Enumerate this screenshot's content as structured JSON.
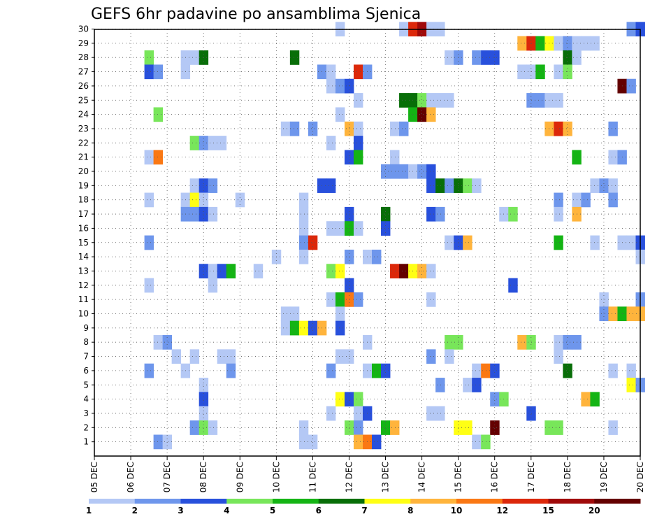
{
  "chart_data": {
    "type": "heatmap",
    "title": "GEFS 6hr padavine po ansamblima Sjenica",
    "xlabel": "",
    "ylabel": "",
    "grid": true,
    "legend_position": "bottom",
    "x_ticks": [
      "05 DEC",
      "06 DEC",
      "07 DEC",
      "08 DEC",
      "09 DEC",
      "10 DEC",
      "11 DEC",
      "12 DEC",
      "13 DEC",
      "14 DEC",
      "15 DEC",
      "16 DEC",
      "17 DEC",
      "18 DEC",
      "19 DEC",
      "20 DEC"
    ],
    "y_ticks": [
      "1",
      "2",
      "3",
      "4",
      "5",
      "6",
      "7",
      "8",
      "9",
      "10",
      "11",
      "12",
      "13",
      "14",
      "15",
      "16",
      "17",
      "18",
      "19",
      "20",
      "21",
      "22",
      "23",
      "24",
      "25",
      "26",
      "27",
      "28",
      "29",
      "30"
    ],
    "x_range_days": [
      0,
      15
    ],
    "y_range": [
      0,
      30
    ],
    "colorbar": {
      "labels": [
        "1",
        "2",
        "3",
        "4",
        "5",
        "6",
        "7",
        "8",
        "10",
        "12",
        "15",
        "20"
      ],
      "colors": [
        "#b4c8f5",
        "#6e96ec",
        "#2850dc",
        "#78e65a",
        "#14b414",
        "#086e08",
        "#ffff14",
        "#ffb43c",
        "#fa7814",
        "#dc280a",
        "#a00a0a",
        "#640000"
      ]
    },
    "cells": [
      {
        "m": 30,
        "d": 6.75,
        "c": 1
      },
      {
        "m": 30,
        "d": 8.5,
        "c": 1
      },
      {
        "m": 30,
        "d": 8.75,
        "c": 10
      },
      {
        "m": 30,
        "d": 9,
        "c": 11
      },
      {
        "m": 30,
        "d": 9.25,
        "c": 1
      },
      {
        "m": 30,
        "d": 9.5,
        "c": 1
      },
      {
        "m": 30,
        "d": 14.75,
        "c": 2
      },
      {
        "m": 30,
        "d": 15,
        "c": 3
      },
      {
        "m": 29,
        "d": 11.75,
        "c": 8
      },
      {
        "m": 29,
        "d": 12,
        "c": 10
      },
      {
        "m": 29,
        "d": 12.25,
        "c": 5
      },
      {
        "m": 29,
        "d": 12.5,
        "c": 7
      },
      {
        "m": 29,
        "d": 12.75,
        "c": 1
      },
      {
        "m": 29,
        "d": 13,
        "c": 2
      },
      {
        "m": 29,
        "d": 13.25,
        "c": 1
      },
      {
        "m": 29,
        "d": 13.5,
        "c": 1
      },
      {
        "m": 29,
        "d": 13.75,
        "c": 1
      },
      {
        "m": 28,
        "d": 1.5,
        "c": 4
      },
      {
        "m": 28,
        "d": 2.5,
        "c": 1
      },
      {
        "m": 28,
        "d": 2.75,
        "c": 1
      },
      {
        "m": 28,
        "d": 3,
        "c": 6
      },
      {
        "m": 28,
        "d": 5.5,
        "c": 6
      },
      {
        "m": 28,
        "d": 9.75,
        "c": 1
      },
      {
        "m": 28,
        "d": 10,
        "c": 2
      },
      {
        "m": 28,
        "d": 10.5,
        "c": 2
      },
      {
        "m": 28,
        "d": 10.75,
        "c": 3
      },
      {
        "m": 28,
        "d": 11,
        "c": 3
      },
      {
        "m": 28,
        "d": 13,
        "c": 6
      },
      {
        "m": 28,
        "d": 13.25,
        "c": 1
      },
      {
        "m": 27,
        "d": 1.5,
        "c": 3
      },
      {
        "m": 27,
        "d": 1.75,
        "c": 2
      },
      {
        "m": 27,
        "d": 2.5,
        "c": 1
      },
      {
        "m": 27,
        "d": 6.25,
        "c": 2
      },
      {
        "m": 27,
        "d": 6.5,
        "c": 1
      },
      {
        "m": 27,
        "d": 7.25,
        "c": 10
      },
      {
        "m": 27,
        "d": 7.5,
        "c": 2
      },
      {
        "m": 27,
        "d": 11.75,
        "c": 1
      },
      {
        "m": 27,
        "d": 12,
        "c": 1
      },
      {
        "m": 27,
        "d": 12.25,
        "c": 5
      },
      {
        "m": 27,
        "d": 12.75,
        "c": 1
      },
      {
        "m": 27,
        "d": 13,
        "c": 4
      },
      {
        "m": 26,
        "d": 6.5,
        "c": 1
      },
      {
        "m": 26,
        "d": 6.75,
        "c": 2
      },
      {
        "m": 26,
        "d": 7,
        "c": 3
      },
      {
        "m": 26,
        "d": 14.5,
        "c": 12
      },
      {
        "m": 26,
        "d": 14.75,
        "c": 2
      },
      {
        "m": 25,
        "d": 7.25,
        "c": 1
      },
      {
        "m": 25,
        "d": 8.5,
        "c": 6
      },
      {
        "m": 25,
        "d": 8.75,
        "c": 6
      },
      {
        "m": 25,
        "d": 9,
        "c": 4
      },
      {
        "m": 25,
        "d": 9.25,
        "c": 1
      },
      {
        "m": 25,
        "d": 9.5,
        "c": 1
      },
      {
        "m": 25,
        "d": 9.75,
        "c": 1
      },
      {
        "m": 25,
        "d": 12,
        "c": 2
      },
      {
        "m": 25,
        "d": 12.25,
        "c": 2
      },
      {
        "m": 25,
        "d": 12.5,
        "c": 1
      },
      {
        "m": 25,
        "d": 12.75,
        "c": 1
      },
      {
        "m": 24,
        "d": 1.75,
        "c": 4
      },
      {
        "m": 24,
        "d": 6.75,
        "c": 1
      },
      {
        "m": 24,
        "d": 8.75,
        "c": 5
      },
      {
        "m": 24,
        "d": 9,
        "c": 12
      },
      {
        "m": 24,
        "d": 9.25,
        "c": 8
      },
      {
        "m": 23,
        "d": 5.25,
        "c": 1
      },
      {
        "m": 23,
        "d": 5.5,
        "c": 2
      },
      {
        "m": 23,
        "d": 6,
        "c": 2
      },
      {
        "m": 23,
        "d": 7,
        "c": 8
      },
      {
        "m": 23,
        "d": 7.25,
        "c": 1
      },
      {
        "m": 23,
        "d": 8.25,
        "c": 1
      },
      {
        "m": 23,
        "d": 8.5,
        "c": 2
      },
      {
        "m": 23,
        "d": 12.5,
        "c": 8
      },
      {
        "m": 23,
        "d": 12.75,
        "c": 10
      },
      {
        "m": 23,
        "d": 13,
        "c": 8
      },
      {
        "m": 23,
        "d": 14.25,
        "c": 2
      },
      {
        "m": 22,
        "d": 2.75,
        "c": 4
      },
      {
        "m": 22,
        "d": 3,
        "c": 2
      },
      {
        "m": 22,
        "d": 3.25,
        "c": 1
      },
      {
        "m": 22,
        "d": 3.5,
        "c": 1
      },
      {
        "m": 22,
        "d": 6.5,
        "c": 1
      },
      {
        "m": 22,
        "d": 7.25,
        "c": 3
      },
      {
        "m": 21,
        "d": 1.5,
        "c": 1
      },
      {
        "m": 21,
        "d": 1.75,
        "c": 9
      },
      {
        "m": 21,
        "d": 7,
        "c": 3
      },
      {
        "m": 21,
        "d": 7.25,
        "c": 5
      },
      {
        "m": 21,
        "d": 8.25,
        "c": 1
      },
      {
        "m": 21,
        "d": 13.25,
        "c": 5
      },
      {
        "m": 21,
        "d": 14.25,
        "c": 1
      },
      {
        "m": 21,
        "d": 14.5,
        "c": 2
      },
      {
        "m": 20,
        "d": 8,
        "c": 2
      },
      {
        "m": 20,
        "d": 8.25,
        "c": 2
      },
      {
        "m": 20,
        "d": 8.5,
        "c": 2
      },
      {
        "m": 20,
        "d": 8.75,
        "c": 1
      },
      {
        "m": 20,
        "d": 9,
        "c": 2
      },
      {
        "m": 20,
        "d": 9.25,
        "c": 3
      },
      {
        "m": 19,
        "d": 2.75,
        "c": 1
      },
      {
        "m": 19,
        "d": 3,
        "c": 3
      },
      {
        "m": 19,
        "d": 3.25,
        "c": 2
      },
      {
        "m": 19,
        "d": 6.25,
        "c": 3
      },
      {
        "m": 19,
        "d": 6.5,
        "c": 3
      },
      {
        "m": 19,
        "d": 9.25,
        "c": 3
      },
      {
        "m": 19,
        "d": 9.5,
        "c": 6
      },
      {
        "m": 19,
        "d": 9.75,
        "c": 2
      },
      {
        "m": 19,
        "d": 10,
        "c": 6
      },
      {
        "m": 19,
        "d": 10.25,
        "c": 4
      },
      {
        "m": 19,
        "d": 10.5,
        "c": 1
      },
      {
        "m": 19,
        "d": 13.75,
        "c": 1
      },
      {
        "m": 19,
        "d": 14,
        "c": 2
      },
      {
        "m": 19,
        "d": 14.25,
        "c": 1
      },
      {
        "m": 18,
        "d": 1.5,
        "c": 1
      },
      {
        "m": 18,
        "d": 2.5,
        "c": 1
      },
      {
        "m": 18,
        "d": 2.75,
        "c": 7
      },
      {
        "m": 18,
        "d": 3,
        "c": 1
      },
      {
        "m": 18,
        "d": 4,
        "c": 1
      },
      {
        "m": 18,
        "d": 5.75,
        "c": 1
      },
      {
        "m": 18,
        "d": 12.75,
        "c": 2
      },
      {
        "m": 18,
        "d": 13.25,
        "c": 1
      },
      {
        "m": 18,
        "d": 13.5,
        "c": 2
      },
      {
        "m": 18,
        "d": 14.25,
        "c": 2
      },
      {
        "m": 17,
        "d": 2.5,
        "c": 2
      },
      {
        "m": 17,
        "d": 2.75,
        "c": 2
      },
      {
        "m": 17,
        "d": 3,
        "c": 3
      },
      {
        "m": 17,
        "d": 3.25,
        "c": 1
      },
      {
        "m": 17,
        "d": 5.75,
        "c": 1
      },
      {
        "m": 17,
        "d": 7,
        "c": 3
      },
      {
        "m": 17,
        "d": 8,
        "c": 6
      },
      {
        "m": 17,
        "d": 9.25,
        "c": 3
      },
      {
        "m": 17,
        "d": 9.5,
        "c": 2
      },
      {
        "m": 17,
        "d": 11.25,
        "c": 1
      },
      {
        "m": 17,
        "d": 11.5,
        "c": 4
      },
      {
        "m": 17,
        "d": 12.75,
        "c": 1
      },
      {
        "m": 17,
        "d": 13.25,
        "c": 8
      },
      {
        "m": 16,
        "d": 5.75,
        "c": 1
      },
      {
        "m": 16,
        "d": 6.5,
        "c": 1
      },
      {
        "m": 16,
        "d": 6.75,
        "c": 1
      },
      {
        "m": 16,
        "d": 7,
        "c": 5
      },
      {
        "m": 16,
        "d": 7.25,
        "c": 1
      },
      {
        "m": 16,
        "d": 8,
        "c": 3
      },
      {
        "m": 15,
        "d": 1.5,
        "c": 2
      },
      {
        "m": 15,
        "d": 5.75,
        "c": 2
      },
      {
        "m": 15,
        "d": 6,
        "c": 10
      },
      {
        "m": 15,
        "d": 9.75,
        "c": 1
      },
      {
        "m": 15,
        "d": 10,
        "c": 3
      },
      {
        "m": 15,
        "d": 10.25,
        "c": 8
      },
      {
        "m": 15,
        "d": 12.75,
        "c": 5
      },
      {
        "m": 15,
        "d": 13.75,
        "c": 1
      },
      {
        "m": 15,
        "d": 14.5,
        "c": 1
      },
      {
        "m": 15,
        "d": 14.75,
        "c": 1
      },
      {
        "m": 15,
        "d": 15,
        "c": 3
      },
      {
        "m": 14,
        "d": 5,
        "c": 1
      },
      {
        "m": 14,
        "d": 5.75,
        "c": 1
      },
      {
        "m": 14,
        "d": 7,
        "c": 2
      },
      {
        "m": 14,
        "d": 7.5,
        "c": 1
      },
      {
        "m": 14,
        "d": 7.75,
        "c": 2
      },
      {
        "m": 14,
        "d": 15,
        "c": 1
      },
      {
        "m": 13,
        "d": 3,
        "c": 3
      },
      {
        "m": 13,
        "d": 3.25,
        "c": 1
      },
      {
        "m": 13,
        "d": 3.5,
        "c": 3
      },
      {
        "m": 13,
        "d": 3.75,
        "c": 5
      },
      {
        "m": 13,
        "d": 4.5,
        "c": 1
      },
      {
        "m": 13,
        "d": 6.5,
        "c": 4
      },
      {
        "m": 13,
        "d": 6.75,
        "c": 7
      },
      {
        "m": 13,
        "d": 8.25,
        "c": 10
      },
      {
        "m": 13,
        "d": 8.5,
        "c": 12
      },
      {
        "m": 13,
        "d": 8.75,
        "c": 7
      },
      {
        "m": 13,
        "d": 9,
        "c": 8
      },
      {
        "m": 13,
        "d": 9.25,
        "c": 1
      },
      {
        "m": 12,
        "d": 1.5,
        "c": 1
      },
      {
        "m": 12,
        "d": 3.25,
        "c": 1
      },
      {
        "m": 12,
        "d": 7,
        "c": 3
      },
      {
        "m": 12,
        "d": 11.5,
        "c": 3
      },
      {
        "m": 11,
        "d": 6.5,
        "c": 1
      },
      {
        "m": 11,
        "d": 6.75,
        "c": 5
      },
      {
        "m": 11,
        "d": 7,
        "c": 9
      },
      {
        "m": 11,
        "d": 7.25,
        "c": 2
      },
      {
        "m": 11,
        "d": 9.25,
        "c": 1
      },
      {
        "m": 11,
        "d": 14,
        "c": 1
      },
      {
        "m": 11,
        "d": 15,
        "c": 2
      },
      {
        "m": 10,
        "d": 5.25,
        "c": 1
      },
      {
        "m": 10,
        "d": 5.5,
        "c": 1
      },
      {
        "m": 10,
        "d": 6.75,
        "c": 1
      },
      {
        "m": 10,
        "d": 14,
        "c": 2
      },
      {
        "m": 10,
        "d": 14.25,
        "c": 8
      },
      {
        "m": 10,
        "d": 14.5,
        "c": 5
      },
      {
        "m": 10,
        "d": 14.75,
        "c": 8
      },
      {
        "m": 10,
        "d": 15,
        "c": 8
      },
      {
        "m": 9,
        "d": 5.25,
        "c": 1
      },
      {
        "m": 9,
        "d": 5.5,
        "c": 5
      },
      {
        "m": 9,
        "d": 5.75,
        "c": 7
      },
      {
        "m": 9,
        "d": 6,
        "c": 3
      },
      {
        "m": 9,
        "d": 6.25,
        "c": 8
      },
      {
        "m": 9,
        "d": 6.75,
        "c": 3
      },
      {
        "m": 8,
        "d": 1.75,
        "c": 1
      },
      {
        "m": 8,
        "d": 2,
        "c": 2
      },
      {
        "m": 8,
        "d": 7.5,
        "c": 1
      },
      {
        "m": 8,
        "d": 9.75,
        "c": 4
      },
      {
        "m": 8,
        "d": 10,
        "c": 4
      },
      {
        "m": 8,
        "d": 11.75,
        "c": 8
      },
      {
        "m": 8,
        "d": 12,
        "c": 4
      },
      {
        "m": 8,
        "d": 12.75,
        "c": 1
      },
      {
        "m": 8,
        "d": 13,
        "c": 2
      },
      {
        "m": 8,
        "d": 13.25,
        "c": 2
      },
      {
        "m": 7,
        "d": 2.25,
        "c": 1
      },
      {
        "m": 7,
        "d": 2.75,
        "c": 1
      },
      {
        "m": 7,
        "d": 3.5,
        "c": 1
      },
      {
        "m": 7,
        "d": 3.75,
        "c": 1
      },
      {
        "m": 7,
        "d": 6.75,
        "c": 1
      },
      {
        "m": 7,
        "d": 7,
        "c": 1
      },
      {
        "m": 7,
        "d": 9.25,
        "c": 2
      },
      {
        "m": 7,
        "d": 9.75,
        "c": 1
      },
      {
        "m": 7,
        "d": 12.75,
        "c": 1
      },
      {
        "m": 6,
        "d": 1.5,
        "c": 2
      },
      {
        "m": 6,
        "d": 2.5,
        "c": 1
      },
      {
        "m": 6,
        "d": 3.75,
        "c": 2
      },
      {
        "m": 6,
        "d": 6.5,
        "c": 2
      },
      {
        "m": 6,
        "d": 7.5,
        "c": 1
      },
      {
        "m": 6,
        "d": 7.75,
        "c": 5
      },
      {
        "m": 6,
        "d": 8,
        "c": 3
      },
      {
        "m": 6,
        "d": 10.5,
        "c": 1
      },
      {
        "m": 6,
        "d": 10.75,
        "c": 9
      },
      {
        "m": 6,
        "d": 11,
        "c": 3
      },
      {
        "m": 6,
        "d": 13,
        "c": 6
      },
      {
        "m": 6,
        "d": 14.25,
        "c": 1
      },
      {
        "m": 6,
        "d": 14.75,
        "c": 1
      },
      {
        "m": 5,
        "d": 3,
        "c": 1
      },
      {
        "m": 5,
        "d": 9.5,
        "c": 2
      },
      {
        "m": 5,
        "d": 10.25,
        "c": 1
      },
      {
        "m": 5,
        "d": 10.5,
        "c": 3
      },
      {
        "m": 5,
        "d": 14.75,
        "c": 7
      },
      {
        "m": 5,
        "d": 15,
        "c": 2
      },
      {
        "m": 4,
        "d": 3,
        "c": 3
      },
      {
        "m": 4,
        "d": 6.75,
        "c": 7
      },
      {
        "m": 4,
        "d": 7,
        "c": 3
      },
      {
        "m": 4,
        "d": 7.25,
        "c": 4
      },
      {
        "m": 4,
        "d": 11,
        "c": 2
      },
      {
        "m": 4,
        "d": 11.25,
        "c": 4
      },
      {
        "m": 4,
        "d": 13.5,
        "c": 8
      },
      {
        "m": 4,
        "d": 13.75,
        "c": 5
      },
      {
        "m": 3,
        "d": 3,
        "c": 1
      },
      {
        "m": 3,
        "d": 6.5,
        "c": 1
      },
      {
        "m": 3,
        "d": 7.25,
        "c": 1
      },
      {
        "m": 3,
        "d": 7.5,
        "c": 3
      },
      {
        "m": 3,
        "d": 9.25,
        "c": 1
      },
      {
        "m": 3,
        "d": 9.5,
        "c": 1
      },
      {
        "m": 3,
        "d": 12,
        "c": 3
      },
      {
        "m": 2,
        "d": 2.75,
        "c": 2
      },
      {
        "m": 2,
        "d": 3,
        "c": 4
      },
      {
        "m": 2,
        "d": 3.25,
        "c": 1
      },
      {
        "m": 2,
        "d": 5.75,
        "c": 1
      },
      {
        "m": 2,
        "d": 7,
        "c": 4
      },
      {
        "m": 2,
        "d": 7.25,
        "c": 2
      },
      {
        "m": 2,
        "d": 8,
        "c": 5
      },
      {
        "m": 2,
        "d": 8.25,
        "c": 8
      },
      {
        "m": 2,
        "d": 10,
        "c": 7
      },
      {
        "m": 2,
        "d": 10.25,
        "c": 7
      },
      {
        "m": 2,
        "d": 11,
        "c": 12
      },
      {
        "m": 2,
        "d": 12.5,
        "c": 4
      },
      {
        "m": 2,
        "d": 12.75,
        "c": 4
      },
      {
        "m": 2,
        "d": 14.25,
        "c": 1
      },
      {
        "m": 1,
        "d": 1.75,
        "c": 2
      },
      {
        "m": 1,
        "d": 2,
        "c": 1
      },
      {
        "m": 1,
        "d": 5.75,
        "c": 1
      },
      {
        "m": 1,
        "d": 6,
        "c": 1
      },
      {
        "m": 1,
        "d": 7.25,
        "c": 8
      },
      {
        "m": 1,
        "d": 7.5,
        "c": 9
      },
      {
        "m": 1,
        "d": 7.75,
        "c": 3
      },
      {
        "m": 1,
        "d": 10.5,
        "c": 1
      },
      {
        "m": 1,
        "d": 10.75,
        "c": 4
      }
    ]
  }
}
